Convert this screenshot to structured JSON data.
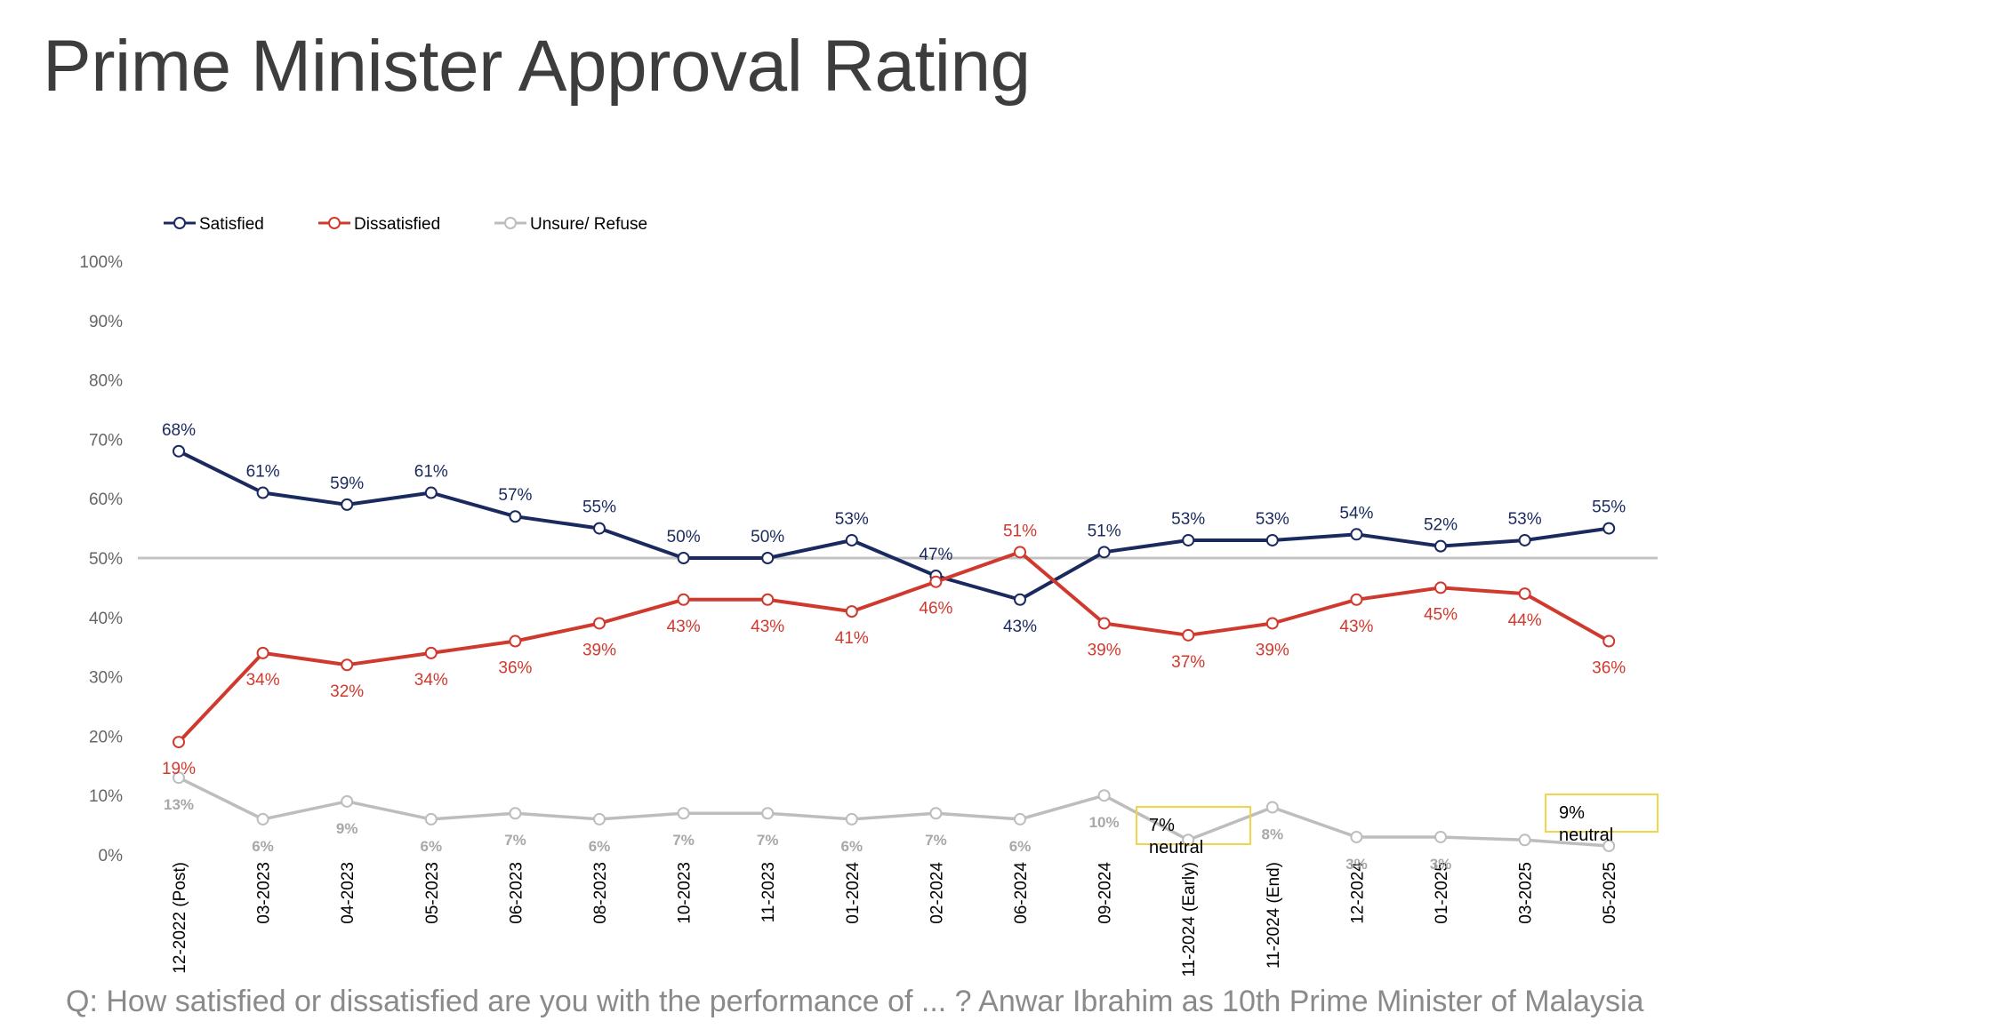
{
  "title": "Prime Minister Approval Rating",
  "footnote": "Q: How satisfied or dissatisfied are you with the performance of ... ? Anwar Ibrahim as 10th Prime Minister of Malaysia",
  "colors": {
    "satisfied": "#1a2a5e",
    "dissatisfied": "#d0392e",
    "unsure": "#bdbdbd",
    "unsure_label": "#a8a8a8",
    "reference_line": "#c4c4c4",
    "annotation_border": "#f0d44a",
    "axis_text": "#666666"
  },
  "chart_data": {
    "type": "line",
    "categories": [
      "12-2022 (Post)",
      "03-2023",
      "04-2023",
      "05-2023",
      "06-2023",
      "08-2023",
      "10-2023",
      "11-2023",
      "01-2024",
      "02-2024",
      "06-2024",
      "09-2024",
      "11-2024 (Early)",
      "11-2024 (End)",
      "12-2024",
      "01-2025",
      "03-2025",
      "05-2025"
    ],
    "series": [
      {
        "name": "Satisfied",
        "values": [
          68,
          61,
          59,
          61,
          57,
          55,
          50,
          50,
          53,
          47,
          43,
          51,
          53,
          53,
          54,
          52,
          53,
          55
        ],
        "labels": [
          "68%",
          "61%",
          "59%",
          "61%",
          "57%",
          "55%",
          "50%",
          "50%",
          "53%",
          "47%",
          "43%",
          "51%",
          "53%",
          "53%",
          "54%",
          "52%",
          "53%",
          "55%"
        ]
      },
      {
        "name": "Dissatisfied",
        "values": [
          19,
          34,
          32,
          34,
          36,
          39,
          43,
          43,
          41,
          46,
          51,
          39,
          37,
          39,
          43,
          45,
          44,
          36
        ],
        "labels": [
          "19%",
          "34%",
          "32%",
          "34%",
          "36%",
          "39%",
          "43%",
          "43%",
          "41%",
          "46%",
          "51%",
          "39%",
          "37%",
          "39%",
          "43%",
          "45%",
          "44%",
          "36%"
        ]
      },
      {
        "name": "Unsure/ Refuse",
        "values": [
          13,
          6,
          9,
          6,
          7,
          6,
          7,
          7,
          6,
          7,
          6,
          10,
          2.5,
          8,
          3,
          3,
          2.5,
          1.5
        ],
        "labels": [
          "13%",
          "6%",
          "9%",
          "6%",
          "7%",
          "6%",
          "7%",
          "7%",
          "6%",
          "7%",
          "6%",
          "10%",
          "",
          "8%",
          "3%",
          "3%",
          "",
          ""
        ]
      }
    ],
    "ylim": [
      0,
      100
    ],
    "yticks": [
      "0%",
      "10%",
      "20%",
      "30%",
      "40%",
      "50%",
      "60%",
      "70%",
      "80%",
      "90%",
      "100%"
    ],
    "reference_line": 50,
    "legend_position": "top-left",
    "annotations": [
      {
        "line1": "7%",
        "line2": "neutral",
        "category": "11-2024 (Early)"
      },
      {
        "line1": "9%",
        "line2": "neutral",
        "category": "05-2025"
      }
    ]
  }
}
